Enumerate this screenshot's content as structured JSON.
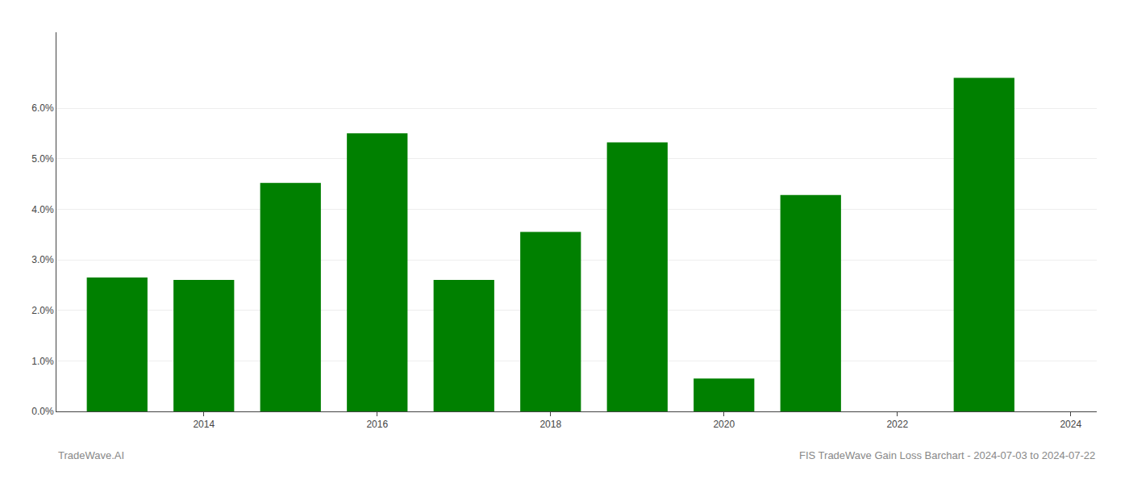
{
  "chart_data": {
    "type": "bar",
    "x": [
      2013,
      2014,
      2015,
      2016,
      2017,
      2018,
      2019,
      2020,
      2021,
      2022,
      2023
    ],
    "values": [
      0.0265,
      0.026,
      0.0452,
      0.055,
      0.026,
      0.0355,
      0.0532,
      0.0065,
      0.0428,
      0.0,
      0.066
    ],
    "color": "#008000",
    "xlim": [
      2012.3,
      2024.3
    ],
    "xticks": [
      2014,
      2016,
      2018,
      2020,
      2022,
      2024
    ],
    "ylim": [
      0,
      0.075
    ],
    "yticks": [
      {
        "value": 0.0,
        "label": "0.0%"
      },
      {
        "value": 0.01,
        "label": "1.0%"
      },
      {
        "value": 0.02,
        "label": "2.0%"
      },
      {
        "value": 0.03,
        "label": "3.0%"
      },
      {
        "value": 0.04,
        "label": "4.0%"
      },
      {
        "value": 0.05,
        "label": "5.0%"
      },
      {
        "value": 0.06,
        "label": "6.0%"
      }
    ],
    "grid": true,
    "annotations": [
      "TradeWave.AI",
      "FIS TradeWave Gain Loss Barchart - 2024-07-03 to 2024-07-22"
    ]
  }
}
